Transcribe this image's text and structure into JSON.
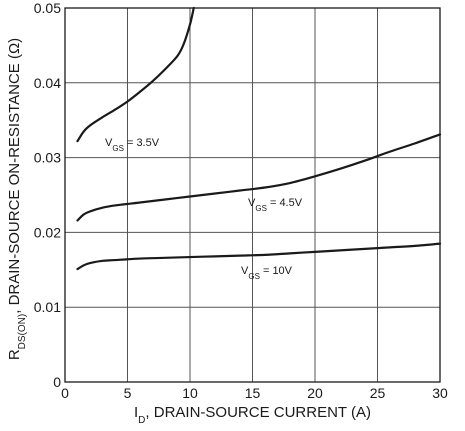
{
  "chart_data": {
    "type": "line",
    "xlabel_main": "I",
    "xlabel_sub": "D",
    "xlabel_rest": ", DRAIN-SOURCE CURRENT (A)",
    "ylabel_main": "R",
    "ylabel_sub": "DS(ON)",
    "ylabel_rest": ", DRAIN-SOURCE ON-RESISTANCE (Ω)",
    "xlim": [
      0,
      30
    ],
    "ylim": [
      0,
      0.05
    ],
    "x_ticks": [
      0,
      5,
      10,
      15,
      20,
      25,
      30
    ],
    "x_tick_labels": [
      "0",
      "5",
      "10",
      "15",
      "20",
      "25",
      "30"
    ],
    "y_ticks": [
      0,
      0.01,
      0.02,
      0.03,
      0.04,
      0.05
    ],
    "y_tick_labels": [
      "0",
      "0.01",
      "0.02",
      "0.03",
      "0.04",
      "0.05"
    ],
    "grid": true,
    "series": [
      {
        "label_main": "V",
        "label_sub": "GS",
        "label_rest": " = 3.5V",
        "color": "#1a1a1a",
        "x": [
          1,
          1.5,
          2,
          3,
          4,
          5,
          6,
          7,
          8,
          9,
          9.5,
          10,
          10.3
        ],
        "y": [
          0.0322,
          0.0335,
          0.0343,
          0.0354,
          0.0364,
          0.0375,
          0.0388,
          0.0402,
          0.0418,
          0.0436,
          0.0452,
          0.0478,
          0.0503
        ]
      },
      {
        "label_main": "V",
        "label_sub": "GS",
        "label_rest": " = 4.5V",
        "color": "#1a1a1a",
        "x": [
          1,
          1.5,
          2,
          3,
          4,
          6,
          8,
          10,
          12,
          14,
          16,
          18,
          20,
          22,
          24,
          26,
          28,
          30
        ],
        "y": [
          0.0216,
          0.0224,
          0.0228,
          0.0233,
          0.0236,
          0.024,
          0.0244,
          0.0248,
          0.0252,
          0.0256,
          0.026,
          0.0266,
          0.0275,
          0.0285,
          0.0296,
          0.0308,
          0.0319,
          0.0331
        ]
      },
      {
        "label_main": "V",
        "label_sub": "GS",
        "label_rest": " = 10V",
        "color": "#1a1a1a",
        "x": [
          1,
          1.5,
          2,
          3,
          4,
          6,
          8,
          10,
          12,
          14,
          16,
          18,
          20,
          22,
          24,
          26,
          28,
          30
        ],
        "y": [
          0.0151,
          0.0156,
          0.0159,
          0.0162,
          0.0163,
          0.0165,
          0.0166,
          0.0167,
          0.0168,
          0.0169,
          0.017,
          0.0172,
          0.0174,
          0.0176,
          0.0178,
          0.018,
          0.0182,
          0.0185
        ]
      }
    ]
  }
}
